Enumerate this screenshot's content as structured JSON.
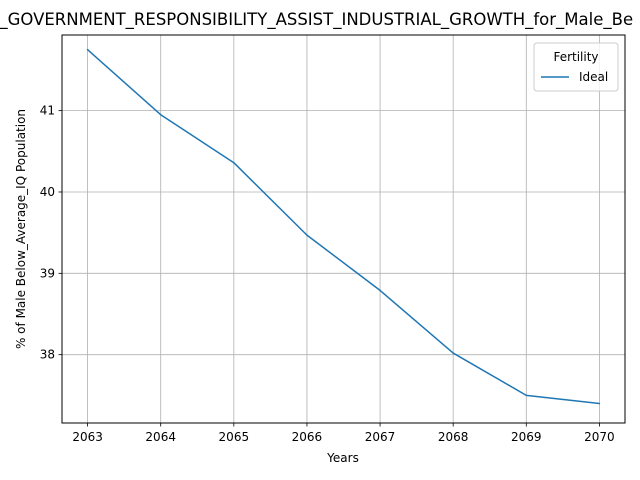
{
  "chart_data": {
    "type": "line",
    "title": "n_GOVERNMENT_RESPONSIBILITY_ASSIST_INDUSTRIAL_GROWTH_for_Male_Be",
    "xlabel": "Years",
    "ylabel": "% of Male Below_Average_IQ Population",
    "x": [
      2063,
      2064,
      2065,
      2066,
      2067,
      2068,
      2069,
      2070
    ],
    "x_ticks": [
      "2063",
      "2064",
      "2065",
      "2066",
      "2067",
      "2068",
      "2069",
      "2070"
    ],
    "y_ticks": [
      "38",
      "39",
      "40",
      "41"
    ],
    "xlim": [
      2062.65,
      2070.35
    ],
    "ylim": [
      37.16,
      41.93
    ],
    "grid": true,
    "legend": {
      "title": "Fertility",
      "placement": "top-right"
    },
    "series": [
      {
        "name": "Ideal",
        "color": "#1f77b4",
        "values": [
          41.75,
          40.95,
          40.36,
          39.47,
          38.79,
          38.02,
          37.5,
          37.4
        ]
      }
    ]
  }
}
